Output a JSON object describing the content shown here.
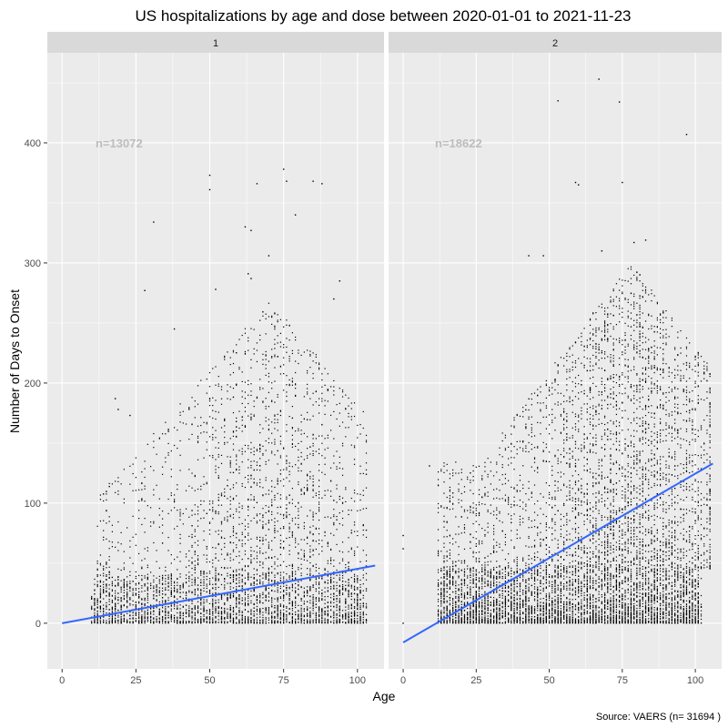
{
  "chart_data": {
    "type": "scatter",
    "title": "US hospitalizations by age and dose between 2020-01-01 to 2021-11-23",
    "xlabel": "Age",
    "ylabel": "Number of Days to Onset",
    "caption": "Source: VAERS (n= 31694 )",
    "xlim": [
      -5,
      109
    ],
    "ylim": [
      -38,
      475
    ],
    "x_ticks": [
      0,
      25,
      50,
      75,
      100
    ],
    "y_ticks": [
      0,
      100,
      200,
      300,
      400
    ],
    "grid": true,
    "colors": {
      "panel_bg": "#ebebeb",
      "strip_bg": "#d9d9d9",
      "grid": "#ffffff",
      "point": "#000000",
      "trend": "#3366ff",
      "n_label": "#bdbdbd"
    },
    "panels": [
      {
        "strip": "1",
        "n_label": "n=13072",
        "trend": [
          [
            0,
            0
          ],
          [
            106,
            48
          ]
        ],
        "outliers": [
          [
            50,
            373
          ],
          [
            50,
            361
          ],
          [
            75,
            378
          ],
          [
            76,
            368
          ],
          [
            85,
            368
          ],
          [
            88,
            366
          ],
          [
            66,
            366
          ],
          [
            79,
            340
          ],
          [
            31,
            334
          ],
          [
            62,
            330
          ],
          [
            64,
            327
          ],
          [
            70,
            306
          ],
          [
            63,
            291
          ],
          [
            64,
            287
          ],
          [
            28,
            277
          ],
          [
            52,
            278
          ],
          [
            18,
            187
          ],
          [
            19,
            178
          ],
          [
            23,
            173
          ],
          [
            38,
            245
          ],
          [
            94,
            285
          ],
          [
            92,
            270
          ]
        ],
        "dense_region": {
          "age_range": [
            10,
            103
          ],
          "days_max": 40
        },
        "sparse_region": {
          "age_range": [
            12,
            103
          ],
          "days_range": [
            40,
            270
          ]
        }
      },
      {
        "strip": "2",
        "n_label": "n=18622",
        "trend": [
          [
            0,
            -16
          ],
          [
            106,
            133
          ]
        ],
        "outliers": [
          [
            67,
            453
          ],
          [
            53,
            435
          ],
          [
            74,
            434
          ],
          [
            97,
            407
          ],
          [
            59,
            367
          ],
          [
            60,
            365
          ],
          [
            75,
            367
          ],
          [
            0,
            73
          ],
          [
            0,
            62
          ],
          [
            0,
            0
          ],
          [
            9,
            131
          ],
          [
            83,
            319
          ],
          [
            79,
            317
          ],
          [
            68,
            310
          ],
          [
            43,
            306
          ],
          [
            48,
            306
          ]
        ],
        "dense_region": {
          "age_range": [
            12,
            102
          ],
          "days_max": 45
        },
        "sparse_region": {
          "age_range": [
            12,
            105
          ],
          "days_range": [
            45,
            300
          ]
        }
      }
    ]
  }
}
